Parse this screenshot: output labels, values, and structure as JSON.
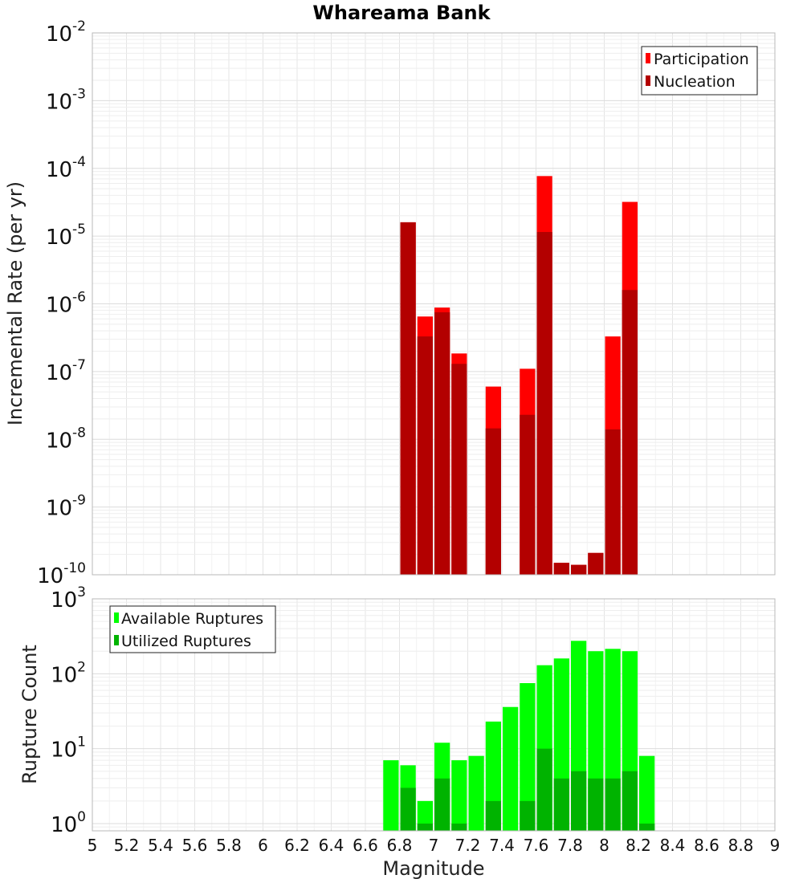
{
  "chart_data": {
    "title": "Whareama Bank",
    "xlabel": "Magnitude",
    "xlim": [
      5,
      9
    ],
    "xticks": [
      "5",
      "5.2",
      "5.4",
      "5.6",
      "5.8",
      "6",
      "6.2",
      "6.4",
      "6.6",
      "6.8",
      "7",
      "7.2",
      "7.4",
      "7.6",
      "7.8",
      "8",
      "8.2",
      "8.4",
      "8.6",
      "8.8",
      "9"
    ],
    "bin_width": 0.1,
    "grid": true,
    "panels": [
      {
        "type": "bar",
        "scale": "log",
        "ylabel": "Incremental Rate (per yr)",
        "ylim": [
          1e-10,
          0.01
        ],
        "legend_position": "top-right",
        "yticks": [
          {
            "base": "10",
            "exp": "-2"
          },
          {
            "base": "10",
            "exp": "-3"
          },
          {
            "base": "10",
            "exp": "-4"
          },
          {
            "base": "10",
            "exp": "-5"
          },
          {
            "base": "10",
            "exp": "-6"
          },
          {
            "base": "10",
            "exp": "-7"
          },
          {
            "base": "10",
            "exp": "-8"
          },
          {
            "base": "10",
            "exp": "-9"
          },
          {
            "base": "10",
            "exp": "-10"
          }
        ],
        "series": [
          {
            "name": "Participation",
            "color": "#ff0000",
            "points": [
              {
                "x": 6.85,
                "y": 1.6e-05
              },
              {
                "x": 6.95,
                "y": 6.5e-07
              },
              {
                "x": 7.05,
                "y": 8.8e-07
              },
              {
                "x": 7.15,
                "y": 1.85e-07
              },
              {
                "x": 7.35,
                "y": 6e-08
              },
              {
                "x": 7.55,
                "y": 1.1e-07
              },
              {
                "x": 7.65,
                "y": 7.7e-05
              },
              {
                "x": 7.75,
                "y": 1.5e-10
              },
              {
                "x": 7.85,
                "y": 1.4e-10
              },
              {
                "x": 7.95,
                "y": 2.1e-10
              },
              {
                "x": 8.05,
                "y": 3.3e-07
              },
              {
                "x": 8.15,
                "y": 3.2e-05
              }
            ]
          },
          {
            "name": "Nucleation",
            "color": "#b30000",
            "points": [
              {
                "x": 6.85,
                "y": 1.6e-05
              },
              {
                "x": 6.95,
                "y": 3.3e-07
              },
              {
                "x": 7.05,
                "y": 7.5e-07
              },
              {
                "x": 7.15,
                "y": 1.3e-07
              },
              {
                "x": 7.35,
                "y": 1.45e-08
              },
              {
                "x": 7.55,
                "y": 2.3e-08
              },
              {
                "x": 7.65,
                "y": 1.15e-05
              },
              {
                "x": 7.75,
                "y": 1.5e-10
              },
              {
                "x": 7.85,
                "y": 1.4e-10
              },
              {
                "x": 7.95,
                "y": 2.1e-10
              },
              {
                "x": 8.05,
                "y": 1.4e-08
              },
              {
                "x": 8.15,
                "y": 1.6e-06
              }
            ]
          }
        ]
      },
      {
        "type": "bar",
        "scale": "log",
        "ylabel": "Rupture Count",
        "ylim": [
          0.8,
          1000
        ],
        "legend_position": "top-left",
        "yticks": [
          {
            "base": "10",
            "exp": "3",
            "value": 1000
          },
          {
            "base": "10",
            "exp": "2",
            "value": 100
          },
          {
            "base": "10",
            "exp": "1",
            "value": 10
          },
          {
            "base": "10",
            "exp": "0",
            "value": 1
          }
        ],
        "series": [
          {
            "name": "Available Ruptures",
            "color": "#00ff00",
            "points": [
              {
                "x": 6.75,
                "y": 7
              },
              {
                "x": 6.85,
                "y": 6
              },
              {
                "x": 6.95,
                "y": 2
              },
              {
                "x": 7.05,
                "y": 12
              },
              {
                "x": 7.15,
                "y": 7
              },
              {
                "x": 7.25,
                "y": 8
              },
              {
                "x": 7.35,
                "y": 23
              },
              {
                "x": 7.45,
                "y": 36
              },
              {
                "x": 7.55,
                "y": 75
              },
              {
                "x": 7.65,
                "y": 130
              },
              {
                "x": 7.75,
                "y": 160
              },
              {
                "x": 7.85,
                "y": 275
              },
              {
                "x": 7.95,
                "y": 200
              },
              {
                "x": 8.05,
                "y": 215
              },
              {
                "x": 8.15,
                "y": 200
              },
              {
                "x": 8.25,
                "y": 8
              }
            ]
          },
          {
            "name": "Utilized Ruptures",
            "color": "#00b300",
            "points": [
              {
                "x": 6.75,
                "y": 0
              },
              {
                "x": 6.85,
                "y": 3
              },
              {
                "x": 6.95,
                "y": 1
              },
              {
                "x": 7.05,
                "y": 4
              },
              {
                "x": 7.15,
                "y": 1
              },
              {
                "x": 7.25,
                "y": 0
              },
              {
                "x": 7.35,
                "y": 2
              },
              {
                "x": 7.45,
                "y": 0
              },
              {
                "x": 7.55,
                "y": 2
              },
              {
                "x": 7.65,
                "y": 10
              },
              {
                "x": 7.75,
                "y": 4
              },
              {
                "x": 7.85,
                "y": 5
              },
              {
                "x": 7.95,
                "y": 4
              },
              {
                "x": 8.05,
                "y": 4
              },
              {
                "x": 8.15,
                "y": 5
              },
              {
                "x": 8.25,
                "y": 1
              }
            ]
          }
        ]
      }
    ]
  }
}
